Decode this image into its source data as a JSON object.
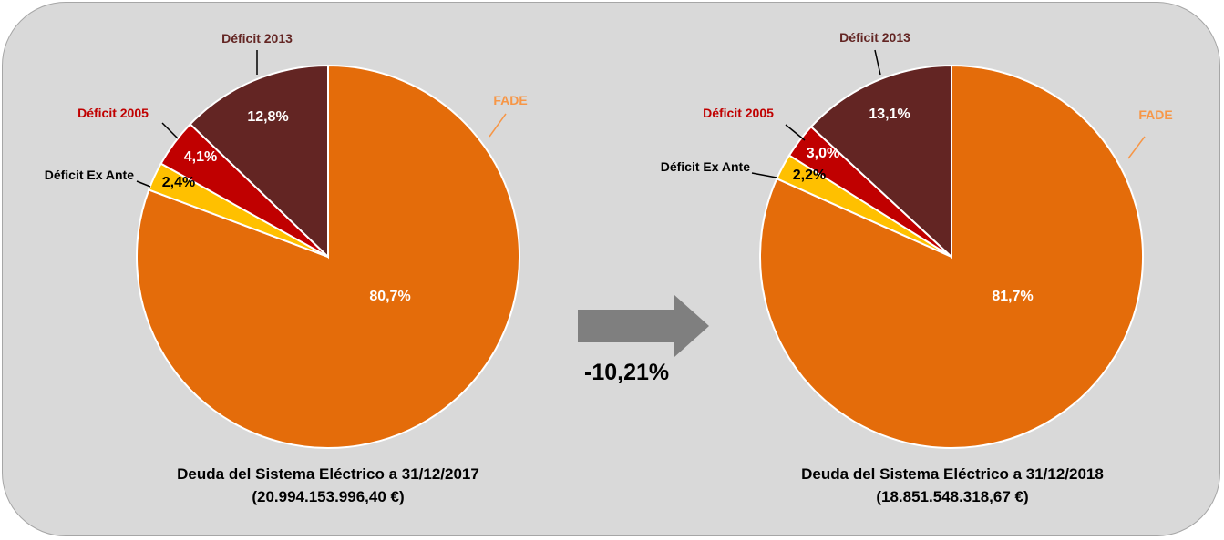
{
  "chart_data": [
    {
      "type": "pie",
      "title": "Deuda del Sistema Eléctrico a 31/12/2017",
      "subtitle": "(20.994.153.996,40 €)",
      "categories": [
        "FADE",
        "Déficit Ex Ante",
        "Déficit 2005",
        "Déficit 2013"
      ],
      "values": [
        80.7,
        2.4,
        4.1,
        12.8
      ],
      "value_labels": [
        "80,7%",
        "2,4%",
        "4,1%",
        "12,8%"
      ],
      "colors": [
        "#e46c0a",
        "#ffc000",
        "#c00000",
        "#632523"
      ],
      "legend": "callout labels"
    },
    {
      "type": "pie",
      "title": "Deuda del Sistema Eléctrico a 31/12/2018",
      "subtitle": "(18.851.548.318,67 €)",
      "categories": [
        "FADE",
        "Déficit Ex Ante",
        "Déficit 2005",
        "Déficit 2013"
      ],
      "values": [
        81.7,
        2.2,
        3.0,
        13.1
      ],
      "value_labels": [
        "81,7%",
        "2,2%",
        "3,0%",
        "13,1%"
      ],
      "colors": [
        "#e46c0a",
        "#ffc000",
        "#c00000",
        "#632523"
      ],
      "legend": "callout labels"
    }
  ],
  "change_label": "-10,21%",
  "category_label_colors": [
    "#f79646",
    "#000000",
    "#c00000",
    "#632523"
  ],
  "value_label_colors": [
    "#ffffff",
    "#000000",
    "#ffffff",
    "#ffffff"
  ]
}
